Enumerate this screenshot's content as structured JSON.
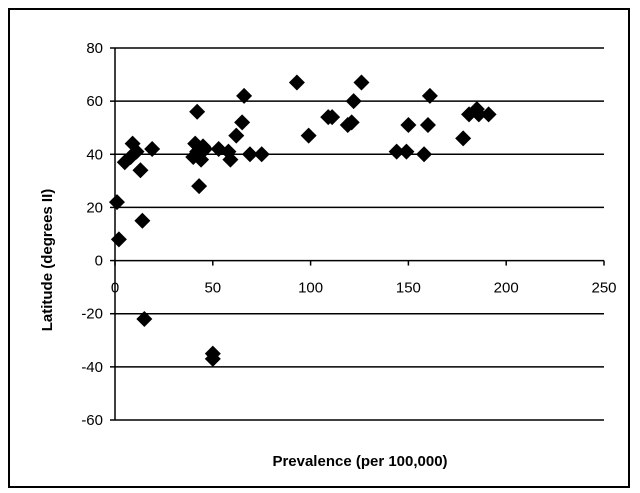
{
  "chart_data": {
    "type": "scatter",
    "title": "",
    "xlabel": "Prevalence (per 100,000)",
    "ylabel": "Latitude (degrees II)",
    "xlim": [
      0,
      250
    ],
    "ylim": [
      -60,
      80
    ],
    "x_ticks": [
      "0",
      "50",
      "100",
      "150",
      "200",
      "250"
    ],
    "y_ticks": [
      "80",
      "60",
      "40",
      "20",
      "0",
      "-20",
      "-40",
      "-60"
    ],
    "grid": "horizontal",
    "legend": "none",
    "marker": "diamond",
    "marker_color": "#000000",
    "points": [
      {
        "x": 1,
        "y": 22
      },
      {
        "x": 2,
        "y": 8
      },
      {
        "x": 5,
        "y": 37
      },
      {
        "x": 8,
        "y": 39
      },
      {
        "x": 9,
        "y": 44
      },
      {
        "x": 11,
        "y": 41
      },
      {
        "x": 13,
        "y": 34
      },
      {
        "x": 14,
        "y": 15
      },
      {
        "x": 15,
        "y": -22
      },
      {
        "x": 19,
        "y": 42
      },
      {
        "x": 40,
        "y": 39
      },
      {
        "x": 41,
        "y": 44
      },
      {
        "x": 42,
        "y": 56
      },
      {
        "x": 42,
        "y": 41
      },
      {
        "x": 43,
        "y": 28
      },
      {
        "x": 44,
        "y": 38
      },
      {
        "x": 45,
        "y": 43
      },
      {
        "x": 46,
        "y": 42
      },
      {
        "x": 50,
        "y": -35
      },
      {
        "x": 50,
        "y": -37
      },
      {
        "x": 53,
        "y": 42
      },
      {
        "x": 58,
        "y": 41
      },
      {
        "x": 59,
        "y": 38
      },
      {
        "x": 62,
        "y": 47
      },
      {
        "x": 65,
        "y": 52
      },
      {
        "x": 66,
        "y": 62
      },
      {
        "x": 69,
        "y": 40
      },
      {
        "x": 75,
        "y": 40
      },
      {
        "x": 93,
        "y": 67
      },
      {
        "x": 99,
        "y": 47
      },
      {
        "x": 109,
        "y": 54
      },
      {
        "x": 111,
        "y": 54
      },
      {
        "x": 119,
        "y": 51
      },
      {
        "x": 121,
        "y": 52
      },
      {
        "x": 122,
        "y": 60
      },
      {
        "x": 126,
        "y": 67
      },
      {
        "x": 144,
        "y": 41
      },
      {
        "x": 149,
        "y": 41
      },
      {
        "x": 150,
        "y": 51
      },
      {
        "x": 158,
        "y": 40
      },
      {
        "x": 160,
        "y": 51
      },
      {
        "x": 161,
        "y": 62
      },
      {
        "x": 178,
        "y": 46
      },
      {
        "x": 181,
        "y": 55
      },
      {
        "x": 185,
        "y": 57
      },
      {
        "x": 186,
        "y": 55
      },
      {
        "x": 191,
        "y": 55
      }
    ]
  }
}
